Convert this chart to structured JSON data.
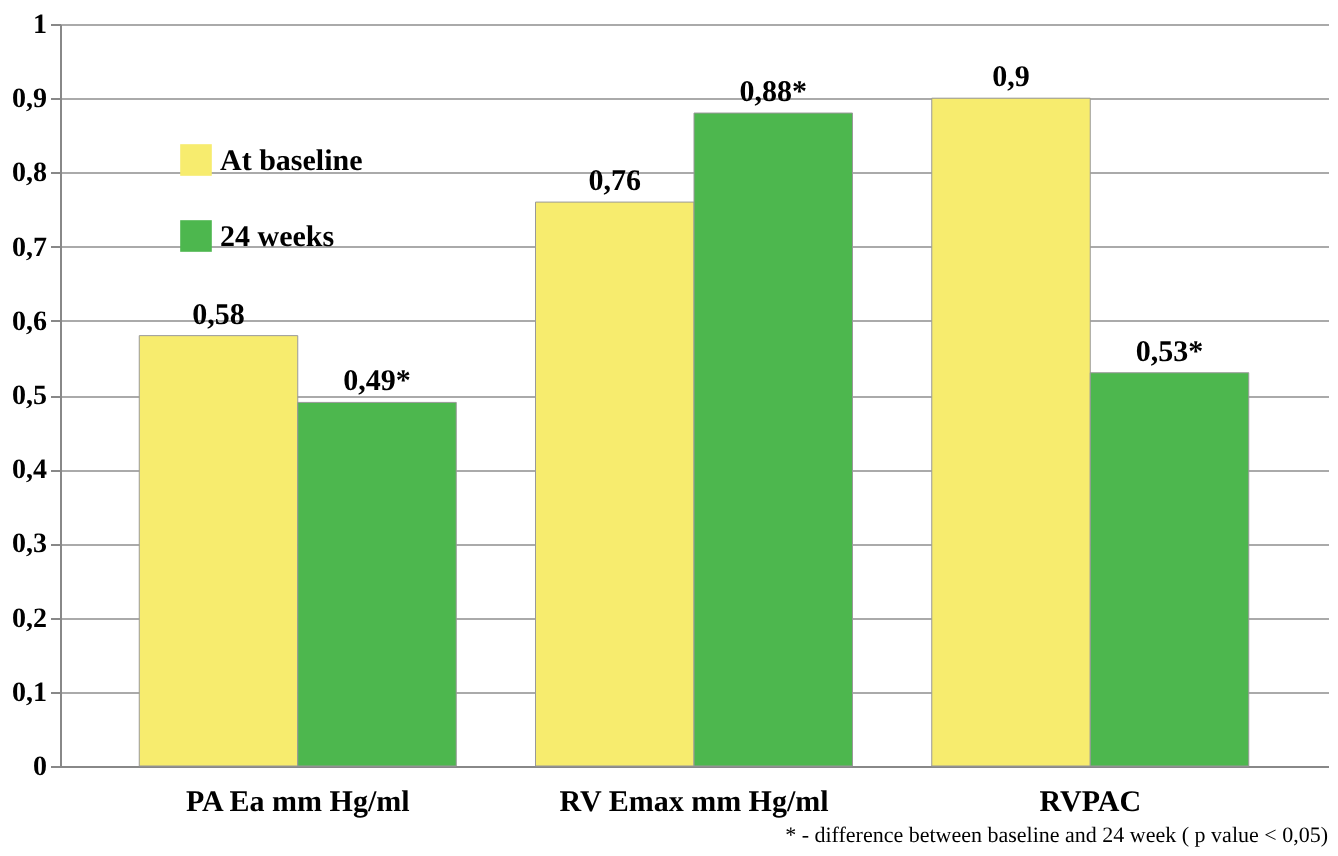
{
  "chart_data": {
    "type": "bar",
    "categories": [
      "PA Ea mm Hg/ml",
      "RV Emax mm Hg/ml",
      "RVPAC"
    ],
    "series": [
      {
        "name": "At baseline",
        "color": "#f7ec6e",
        "values": [
          0.58,
          0.76,
          0.9
        ],
        "value_labels": [
          "0,58",
          "0,76",
          "0,9"
        ]
      },
      {
        "name": "24 weeks",
        "color": "#4db74e",
        "values": [
          0.49,
          0.88,
          0.53
        ],
        "value_labels": [
          "0,49*",
          "0,88*",
          "0,53*"
        ]
      }
    ],
    "ylim": [
      0,
      1
    ],
    "yticks": [
      0,
      {
        "value": 0.1,
        "label": "0,1"
      },
      {
        "value": 0.2,
        "label": "0,2"
      },
      {
        "value": 0.3,
        "label": "0,3"
      },
      {
        "value": 0.4,
        "label": "0,4"
      },
      {
        "value": 0.5,
        "label": "0,5"
      },
      {
        "value": 0.6,
        "label": "0,6"
      },
      {
        "value": 0.7,
        "label": "0,7"
      },
      {
        "value": 0.8,
        "label": "0,8"
      },
      {
        "value": 0.9,
        "label": "0,9"
      },
      1
    ],
    "grid": "y",
    "legend": "top left",
    "annotations": [
      "* - difference between baseline and 24 week ( p value < 0,05)"
    ]
  }
}
